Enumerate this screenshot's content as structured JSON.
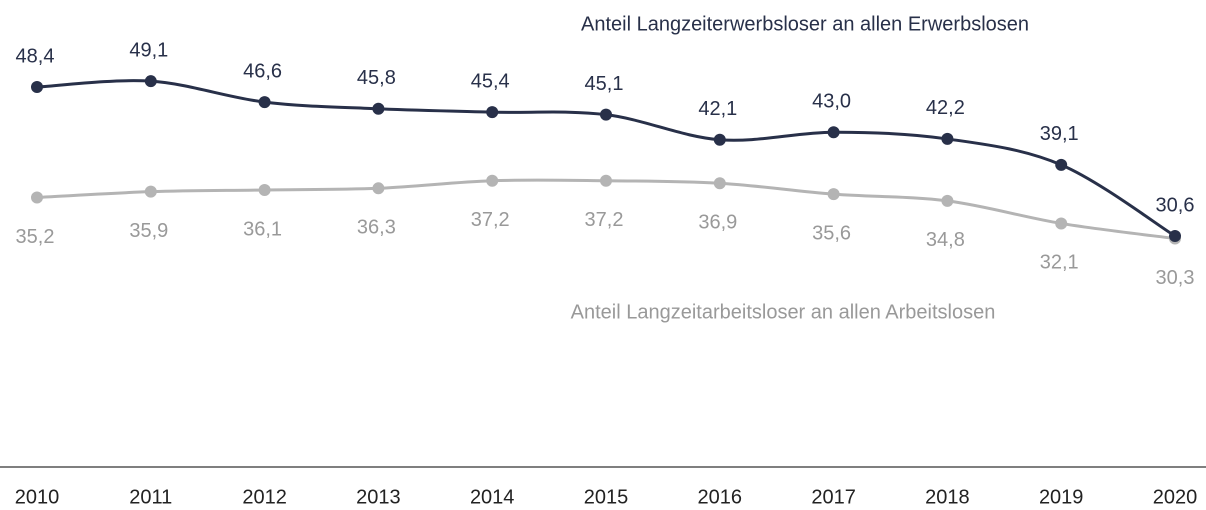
{
  "chart_data": {
    "type": "line",
    "categories": [
      "2010",
      "2011",
      "2012",
      "2013",
      "2014",
      "2015",
      "2016",
      "2017",
      "2018",
      "2019",
      "2020"
    ],
    "series": [
      {
        "name": "Anteil Langzeiterwerbsloser an allen Erwerbslosen",
        "color": "#283049",
        "values": [
          48.4,
          49.1,
          46.6,
          45.8,
          45.4,
          45.1,
          42.1,
          43.0,
          42.2,
          39.1,
          30.6
        ],
        "value_labels": [
          "48,4",
          "49,1",
          "46,6",
          "45,8",
          "45,4",
          "45,1",
          "42,1",
          "43,0",
          "42,2",
          "39,1",
          "30,6"
        ]
      },
      {
        "name": "Anteil Langzeitarbeitsloser an allen Arbeitslosen",
        "color": "#b4b4b4",
        "values": [
          35.2,
          35.9,
          36.1,
          36.3,
          37.2,
          37.2,
          36.9,
          35.6,
          34.8,
          32.1,
          30.3
        ],
        "value_labels": [
          "35,2",
          "35,9",
          "36,1",
          "36,3",
          "37,2",
          "37,2",
          "36,9",
          "35,6",
          "34,8",
          "32,1",
          "30,3"
        ]
      }
    ],
    "ylim": [
      3,
      58.8
    ]
  }
}
